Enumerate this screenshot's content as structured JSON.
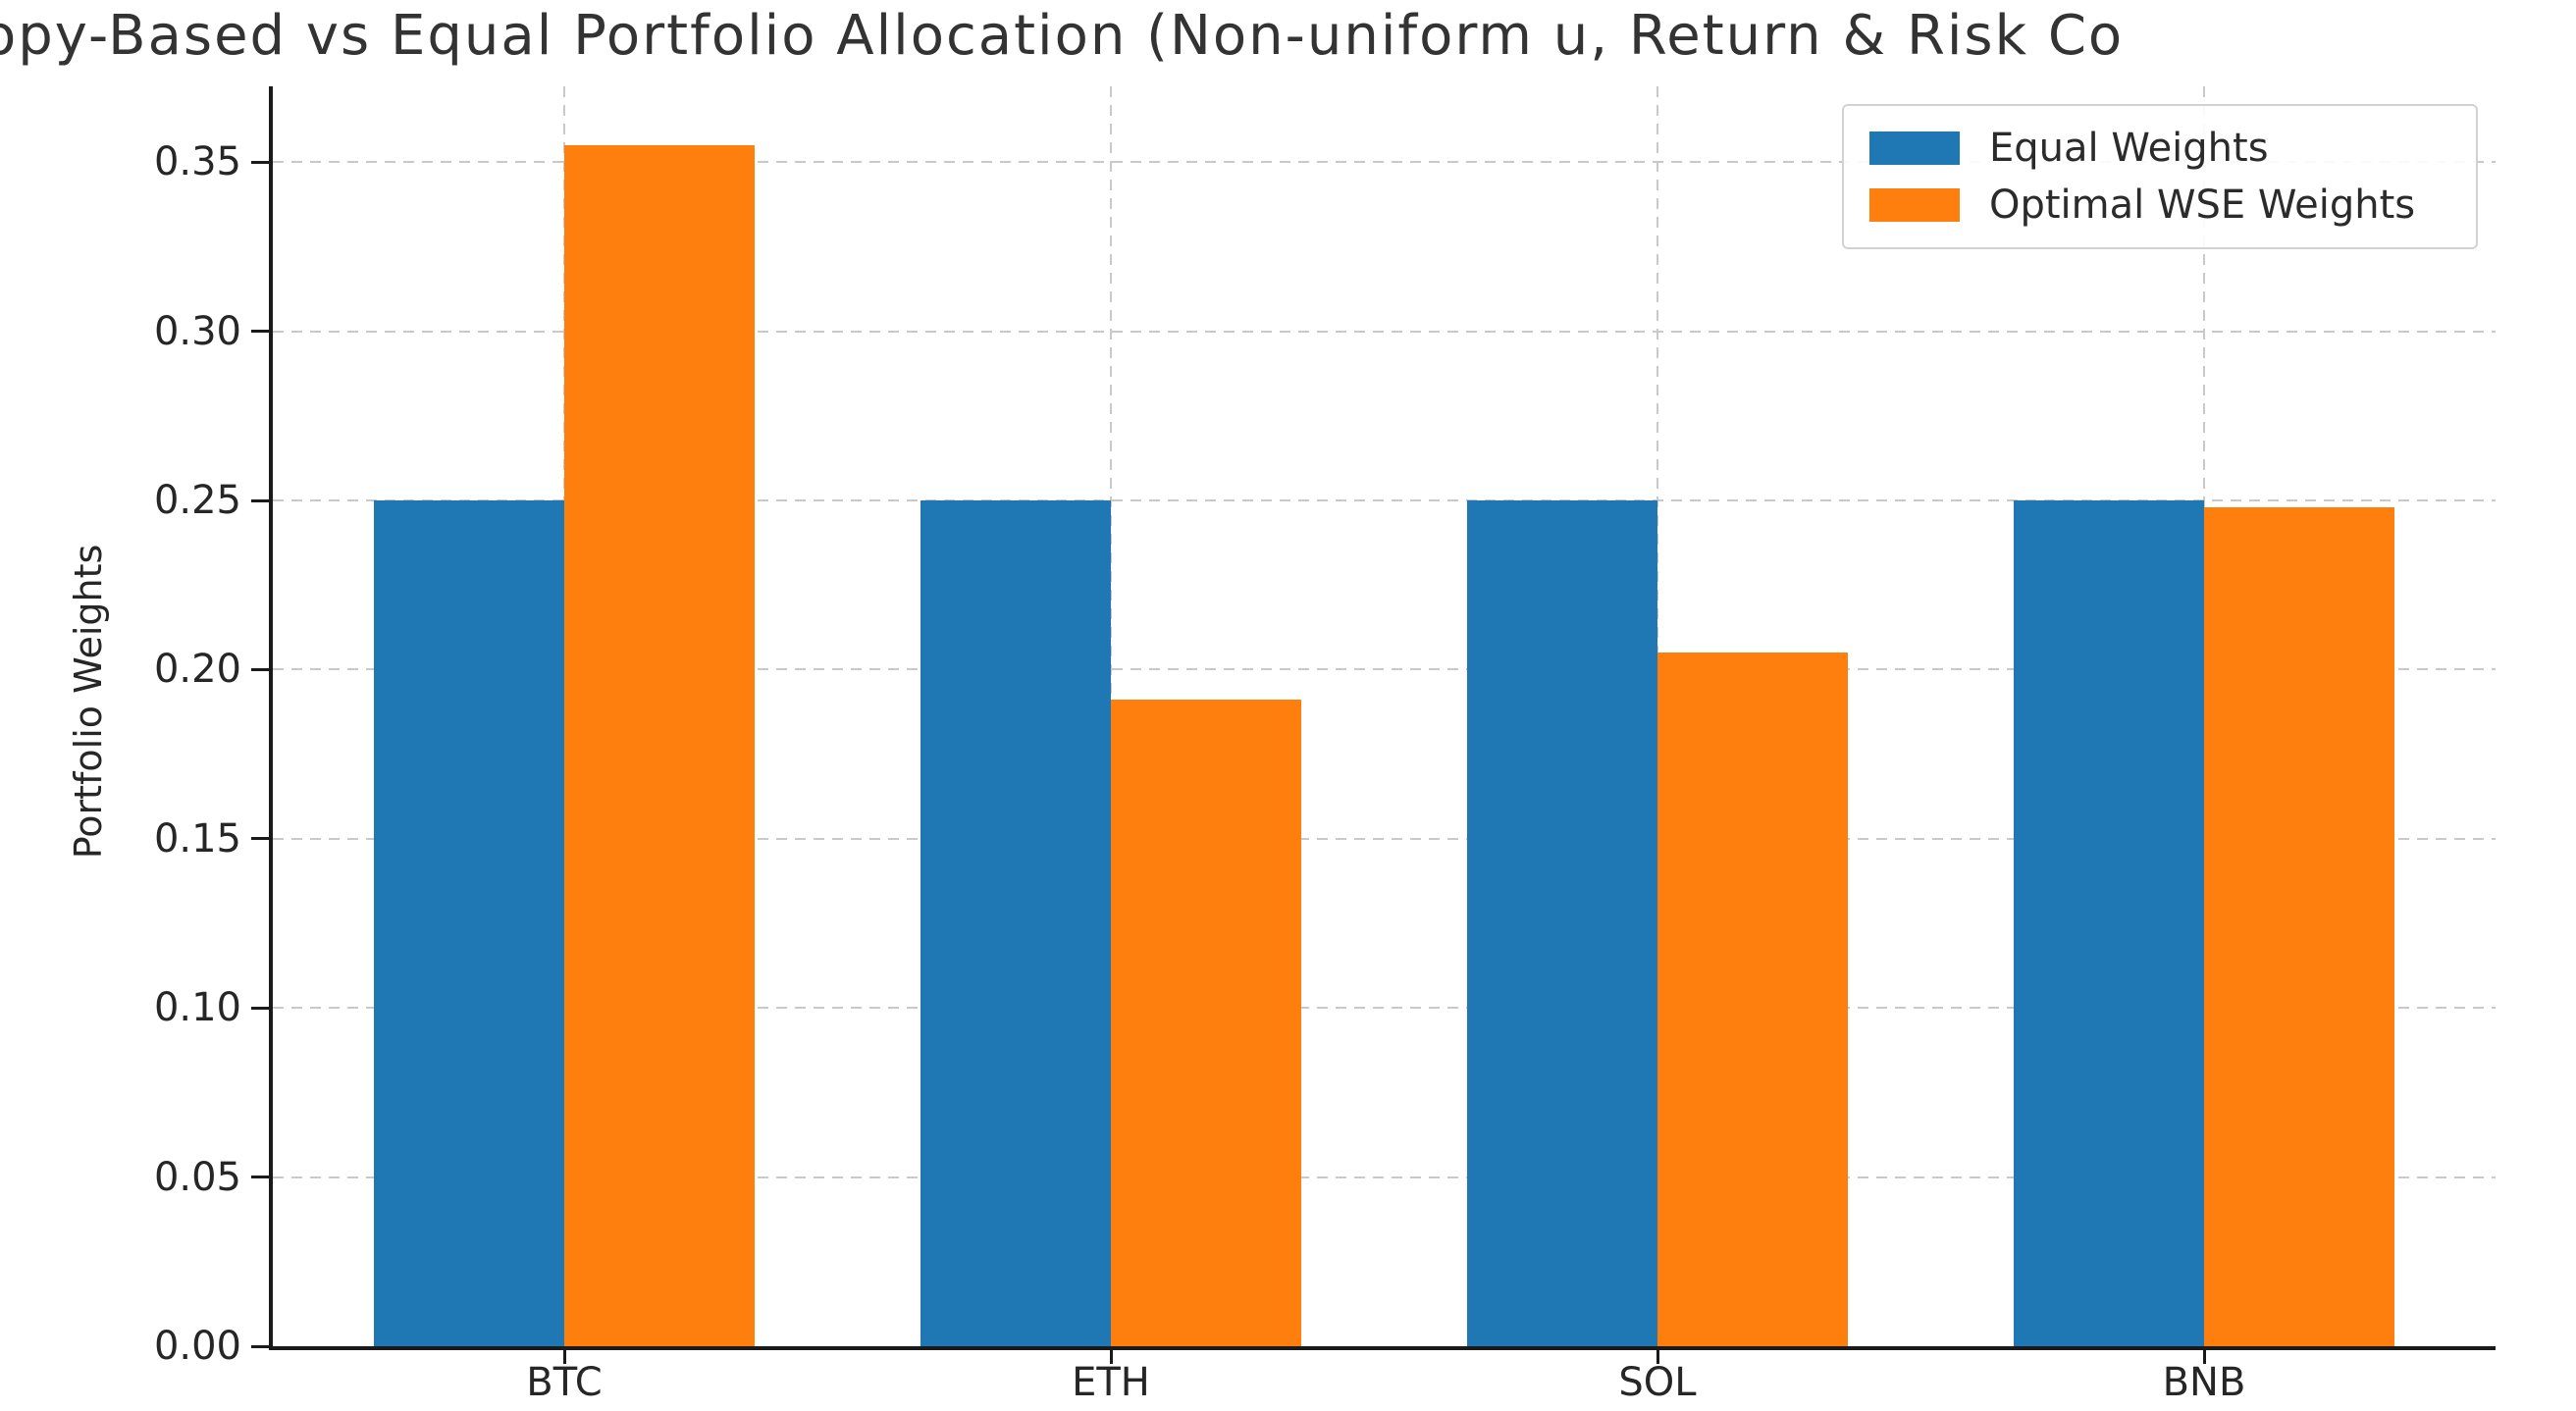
{
  "figure": {
    "background": "#ffffff",
    "spine_color": "#1a1a1a",
    "grid_color": "#c9c9c9",
    "text_color": "#262626"
  },
  "chart_data": {
    "type": "bar",
    "title": "opy-Based vs Equal Portfolio Allocation (Non-uniform u, Return & Risk Co",
    "title_note": "title clipped at both left and right figure edges",
    "xlabel": "",
    "ylabel": "Portfolio Weights",
    "categories": [
      "BTC",
      "ETH",
      "SOL",
      "BNB"
    ],
    "series": [
      {
        "name": "Equal Weights",
        "color": "#1f77b4",
        "values": [
          0.25,
          0.25,
          0.25,
          0.25
        ]
      },
      {
        "name": "Optimal WSE Weights",
        "color": "#ff7f0e",
        "values": [
          0.355,
          0.191,
          0.205,
          0.248
        ]
      }
    ],
    "ytick_labels": [
      "0.00",
      "0.05",
      "0.10",
      "0.15",
      "0.20",
      "0.25",
      "0.30",
      "0.35"
    ],
    "ylim": [
      0,
      0.3724
    ],
    "grid": true,
    "grid_style": "dashed",
    "legend_position": "upper right"
  },
  "legend": {
    "items": [
      {
        "label": "Equal Weights",
        "color": "#1f77b4"
      },
      {
        "label": "Optimal WSE Weights",
        "color": "#ff7f0e"
      }
    ]
  }
}
